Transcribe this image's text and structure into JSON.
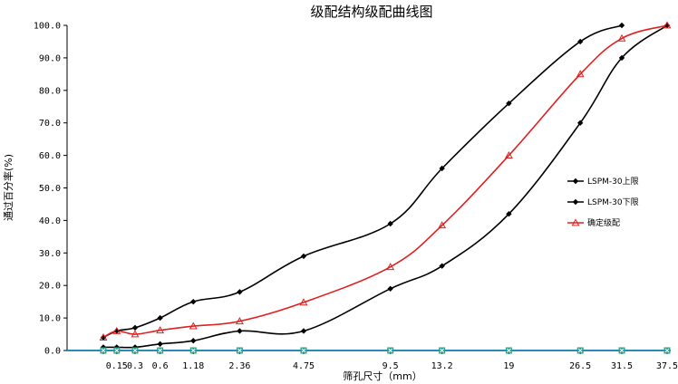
{
  "chart_data": {
    "type": "line",
    "title": "级配结构级配曲线图",
    "xlabel": "筛孔尺寸（mm）",
    "ylabel": "通过百分率(%)",
    "x": [
      0.075,
      0.15,
      0.3,
      0.6,
      1.18,
      2.36,
      4.75,
      9.5,
      13.2,
      19,
      26.5,
      31.5,
      37.5
    ],
    "x_tick_labels": [
      "",
      "0.15",
      "0.3",
      "0.6",
      "1.18",
      "2.36",
      "4.75",
      "9.5",
      "13.2",
      "19",
      "26.5",
      "31.5",
      "37.5"
    ],
    "x_scale": "power 0.45",
    "ylim": [
      0,
      100
    ],
    "y_ticks": [
      "0.0",
      "10.0",
      "20.0",
      "30.0",
      "40.0",
      "50.0",
      "60.0",
      "70.0",
      "80.0",
      "90.0",
      "100.0"
    ],
    "grid": false,
    "legend_position": "right",
    "series": [
      {
        "name": "LSPM-30上限",
        "color": "#000000",
        "marker": "diamond",
        "values": [
          4,
          6,
          7,
          10,
          15,
          18,
          29,
          39,
          56,
          76,
          95,
          100,
          null
        ]
      },
      {
        "name": "LSPM-30下限",
        "color": "#000000",
        "marker": "diamond",
        "values": [
          1,
          1,
          1,
          2,
          3,
          6,
          6,
          19,
          26,
          42,
          70,
          90,
          100
        ]
      },
      {
        "name": "确定级配",
        "color": "#e02020",
        "marker": "triangle",
        "values": [
          4,
          6,
          5,
          6.2,
          7.5,
          9,
          14.8,
          25.7,
          38.5,
          60,
          85,
          96,
          100
        ]
      },
      {
        "name": "",
        "color": "#2a8ab8",
        "marker": "square-x",
        "marker_color": "#2ca08e",
        "values": [
          0,
          0,
          0,
          0,
          0,
          0,
          0,
          0,
          0,
          0,
          0,
          0,
          0
        ]
      }
    ]
  }
}
